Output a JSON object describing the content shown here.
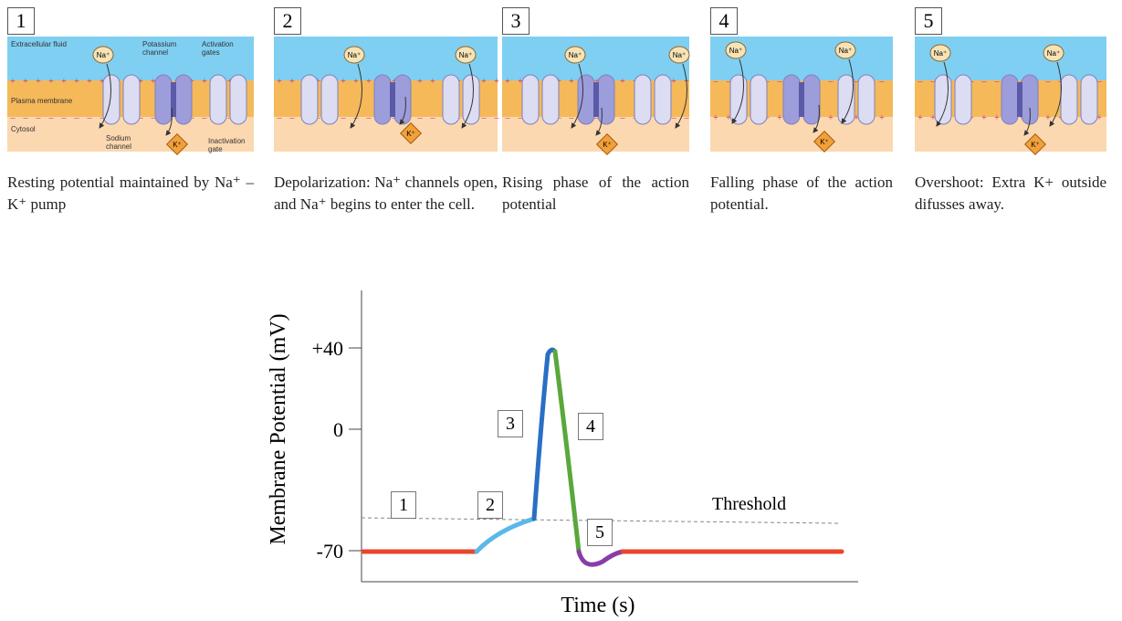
{
  "panels": [
    {
      "number": "1",
      "caption": "Resting potential maintained by Na⁺ – K⁺ pump",
      "labels": [
        "Extracellular fluid",
        "Potassium channel",
        "Activation gates",
        "Plasma membrane",
        "Sodium channel",
        "Cytosol",
        "Inactivation gate"
      ],
      "ions": [
        "Na⁺",
        "K⁺"
      ]
    },
    {
      "number": "2",
      "caption": "Depolarization: Na⁺ channels open, and Na⁺ begins to enter the cell.",
      "ions": [
        "Na⁺",
        "Na⁺",
        "K⁺"
      ]
    },
    {
      "number": "3",
      "caption": "Rising phase of the action potential",
      "ions": [
        "Na⁺",
        "Na⁺",
        "K⁺"
      ]
    },
    {
      "number": "4",
      "caption": "Falling phase of the action potential.",
      "ions": [
        "Na⁺",
        "Na⁺",
        "K⁺"
      ]
    },
    {
      "number": "5",
      "caption": "Overshoot: Extra K+ outside difusses away.",
      "ions": [
        "Na⁺",
        "Na⁺",
        "K⁺"
      ]
    }
  ],
  "graph": {
    "y_axis_label": "Membrane Potential (mV)",
    "x_axis_label": "Time (s)",
    "y_ticks": [
      "+40",
      "0",
      "-70"
    ],
    "threshold_label": "Threshold",
    "stage_labels": [
      "1",
      "2",
      "3",
      "4",
      "5"
    ]
  }
}
